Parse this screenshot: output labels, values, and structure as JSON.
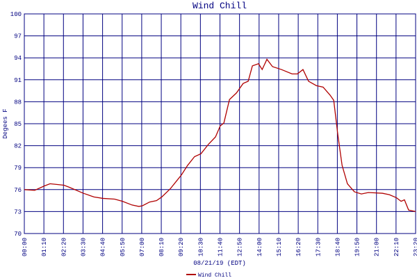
{
  "chart_data": {
    "type": "line",
    "title": "Wind Chill",
    "x_label": "08/21/19 (EDT)",
    "y_label": "Degees F",
    "x": [
      0,
      37,
      72,
      92,
      142,
      162,
      211,
      249,
      281,
      323,
      351,
      385,
      410,
      423,
      448,
      473,
      492,
      522,
      562,
      584,
      609,
      632,
      659,
      684,
      701,
      714,
      734,
      759,
      783,
      801,
      816,
      838,
      851,
      868,
      888,
      920,
      958,
      977,
      997,
      1017,
      1045,
      1069,
      1094,
      1107,
      1122,
      1137,
      1156,
      1181,
      1206,
      1231,
      1281,
      1306,
      1331,
      1348,
      1360,
      1375,
      1400
    ],
    "series": [
      {
        "name": "Wind Chill",
        "color": "#b00000",
        "values": [
          76.0,
          75.9,
          76.5,
          76.8,
          76.6,
          76.3,
          75.5,
          75.0,
          74.8,
          74.7,
          74.4,
          73.9,
          73.7,
          73.8,
          74.3,
          74.5,
          75.0,
          76.1,
          78.0,
          79.3,
          80.5,
          80.9,
          82.2,
          83.2,
          84.7,
          85.1,
          88.3,
          89.2,
          90.5,
          90.8,
          92.9,
          93.2,
          92.4,
          93.8,
          92.8,
          92.4,
          91.8,
          91.8,
          92.4,
          90.8,
          90.2,
          90.0,
          88.9,
          88.2,
          83.4,
          79.3,
          76.8,
          75.7,
          75.4,
          75.6,
          75.5,
          75.3,
          74.9,
          74.4,
          74.6,
          73.2,
          73.0
        ]
      }
    ],
    "xlim": [
      0,
      1400
    ],
    "xticks": [
      {
        "value": 0,
        "label": "00:00"
      },
      {
        "value": 70,
        "label": "01:10"
      },
      {
        "value": 140,
        "label": "02:20"
      },
      {
        "value": 210,
        "label": "03:30"
      },
      {
        "value": 280,
        "label": "04:40"
      },
      {
        "value": 350,
        "label": "05:50"
      },
      {
        "value": 420,
        "label": "07:00"
      },
      {
        "value": 490,
        "label": "08:10"
      },
      {
        "value": 560,
        "label": "09:20"
      },
      {
        "value": 630,
        "label": "10:30"
      },
      {
        "value": 700,
        "label": "11:40"
      },
      {
        "value": 770,
        "label": "12:50"
      },
      {
        "value": 840,
        "label": "14:00"
      },
      {
        "value": 910,
        "label": "15:10"
      },
      {
        "value": 980,
        "label": "16:20"
      },
      {
        "value": 1050,
        "label": "17:30"
      },
      {
        "value": 1120,
        "label": "18:40"
      },
      {
        "value": 1190,
        "label": "19:50"
      },
      {
        "value": 1260,
        "label": "21:00"
      },
      {
        "value": 1330,
        "label": "22:10"
      },
      {
        "value": 1400,
        "label": "23:20"
      }
    ],
    "ylim": [
      70,
      100
    ],
    "yticks": [
      70,
      73,
      76,
      79,
      82,
      85,
      88,
      91,
      94,
      97,
      100
    ],
    "grid": true,
    "grid_color": "#000080"
  }
}
